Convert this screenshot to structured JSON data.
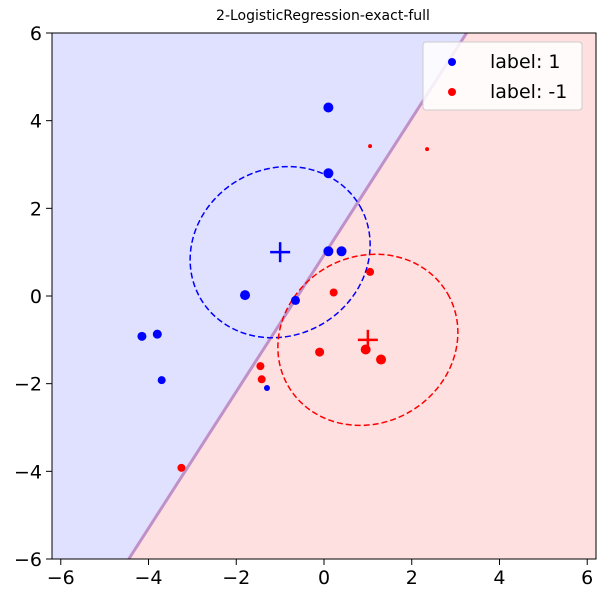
{
  "chart_data": {
    "type": "scatter",
    "title": "2-LogisticRegression-exact-full",
    "xlabel": "",
    "ylabel": "",
    "xlim": [
      -6.2,
      6.2
    ],
    "ylim": [
      -6,
      6
    ],
    "xticks": [
      -6,
      -4,
      -2,
      0,
      2,
      4,
      6
    ],
    "yticks": [
      -6,
      -4,
      -2,
      0,
      2,
      4,
      6
    ],
    "grid": false,
    "legend": "top-right",
    "decision_boundary": {
      "points": [
        [
          -4.45,
          -6
        ],
        [
          3.25,
          6
        ]
      ],
      "positive_region_color": "#e0e0ff",
      "negative_region_color": "#ffe0e0",
      "boundary_color": "#c090c8"
    },
    "series": [
      {
        "name": "label: 1",
        "color": "#0000ff",
        "points": [
          {
            "x": 0.1,
            "y": 4.3,
            "size": 5
          },
          {
            "x": 0.1,
            "y": 2.8,
            "size": 5
          },
          {
            "x": 0.1,
            "y": 1.02,
            "size": 5
          },
          {
            "x": 0.4,
            "y": 1.02,
            "size": 5
          },
          {
            "x": -1.8,
            "y": 0.02,
            "size": 5
          },
          {
            "x": -0.65,
            "y": -0.1,
            "size": 4.5
          },
          {
            "x": -4.15,
            "y": -0.92,
            "size": 4.5
          },
          {
            "x": -3.8,
            "y": -0.87,
            "size": 4.5
          },
          {
            "x": -3.7,
            "y": -1.92,
            "size": 4
          },
          {
            "x": -1.3,
            "y": -2.1,
            "size": 3
          }
        ],
        "mean": {
          "x": -1,
          "y": 1
        },
        "ellipse": {
          "cx": -1,
          "cy": 1,
          "rx": 2.1,
          "ry": 1.9,
          "angle_deg": 30
        }
      },
      {
        "name": "label: -1",
        "color": "#ff0000",
        "points": [
          {
            "x": 1.05,
            "y": 3.42,
            "size": 2
          },
          {
            "x": 2.35,
            "y": 3.35,
            "size": 2
          },
          {
            "x": 1.05,
            "y": 0.55,
            "size": 4
          },
          {
            "x": 0.22,
            "y": 0.08,
            "size": 4
          },
          {
            "x": -0.1,
            "y": -1.28,
            "size": 4.5
          },
          {
            "x": 0.95,
            "y": -1.22,
            "size": 5
          },
          {
            "x": 1.3,
            "y": -1.45,
            "size": 5
          },
          {
            "x": -1.45,
            "y": -1.6,
            "size": 4
          },
          {
            "x": -1.42,
            "y": -1.9,
            "size": 4
          },
          {
            "x": -3.25,
            "y": -3.92,
            "size": 4
          }
        ],
        "mean": {
          "x": 1,
          "y": -1
        },
        "ellipse": {
          "cx": 1,
          "cy": -1,
          "rx": 2.1,
          "ry": 1.9,
          "angle_deg": 30
        }
      }
    ]
  }
}
